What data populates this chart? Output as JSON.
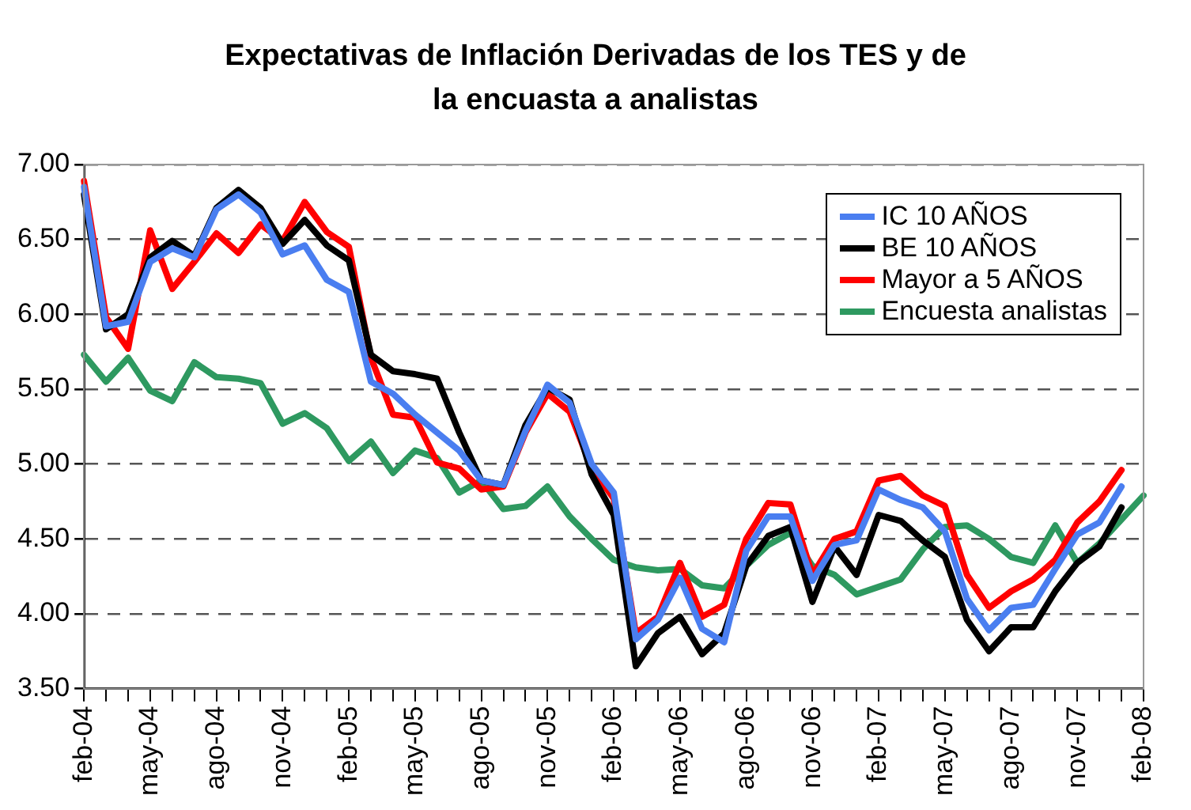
{
  "chart_data": {
    "type": "line",
    "title": "Expectativas de Inflación Derivadas de los TES y de la encuasta a analistas",
    "categories": [
      "feb-04",
      null,
      null,
      "may-04",
      null,
      null,
      "ago-04",
      null,
      null,
      "nov-04",
      null,
      null,
      "feb-05",
      null,
      null,
      "may-05",
      null,
      null,
      "ago-05",
      null,
      null,
      "nov-05",
      null,
      null,
      "feb-06",
      null,
      null,
      "may-06",
      null,
      null,
      "ago-06",
      null,
      null,
      "nov-06",
      null,
      null,
      "feb-07",
      null,
      null,
      "may-07",
      null,
      null,
      "ago-07",
      null,
      null,
      "nov-07",
      null,
      null,
      "feb-08"
    ],
    "series": [
      {
        "name": "IC 10 AÑOS",
        "color": "#4a7ef0",
        "values": [
          6.85,
          5.92,
          5.95,
          6.35,
          6.44,
          6.38,
          6.7,
          6.8,
          6.68,
          6.4,
          6.46,
          6.23,
          6.15,
          5.55,
          5.47,
          5.33,
          5.21,
          5.09,
          4.89,
          4.86,
          5.22,
          5.53,
          5.41,
          5.0,
          4.81,
          3.83,
          3.96,
          4.24,
          3.9,
          3.81,
          4.42,
          4.65,
          4.65,
          4.22,
          4.46,
          4.49,
          4.83,
          4.76,
          4.71,
          4.55,
          4.1,
          3.89,
          4.04,
          4.06,
          4.3,
          4.53,
          4.61,
          4.85,
          null
        ]
      },
      {
        "name": "BE 10 AÑOS",
        "color": "#000000",
        "values": [
          6.8,
          5.9,
          6.0,
          6.38,
          6.49,
          6.39,
          6.71,
          6.83,
          6.71,
          6.47,
          6.63,
          6.46,
          6.36,
          5.73,
          5.62,
          5.6,
          5.57,
          5.21,
          4.89,
          4.86,
          5.26,
          5.51,
          5.43,
          4.93,
          4.66,
          3.65,
          3.87,
          3.98,
          3.73,
          3.87,
          4.32,
          4.52,
          4.58,
          4.08,
          4.45,
          4.26,
          4.66,
          4.62,
          4.49,
          4.38,
          3.96,
          3.75,
          3.91,
          3.91,
          4.15,
          4.34,
          4.45,
          4.71,
          null
        ]
      },
      {
        "name": "Mayor a 5 AÑOS",
        "color": "#ff0000",
        "values": [
          6.89,
          5.98,
          5.77,
          6.56,
          6.17,
          6.35,
          6.54,
          6.41,
          6.6,
          6.49,
          6.75,
          6.55,
          6.45,
          5.71,
          5.33,
          5.31,
          5.01,
          4.97,
          4.83,
          4.85,
          5.21,
          5.47,
          5.35,
          4.97,
          4.77,
          3.87,
          3.98,
          4.34,
          3.98,
          4.06,
          4.5,
          4.74,
          4.73,
          4.26,
          4.5,
          4.55,
          4.89,
          4.92,
          4.79,
          4.72,
          4.26,
          4.04,
          4.15,
          4.23,
          4.36,
          4.61,
          4.75,
          4.96,
          null
        ]
      },
      {
        "name": "Encuesta analistas",
        "color": "#2e9960",
        "values": [
          5.73,
          5.55,
          5.71,
          5.49,
          5.42,
          5.68,
          5.58,
          5.57,
          5.54,
          5.27,
          5.34,
          5.24,
          5.02,
          5.15,
          4.94,
          5.09,
          5.04,
          4.81,
          4.89,
          4.7,
          4.72,
          4.85,
          4.65,
          4.5,
          4.36,
          4.31,
          4.29,
          4.3,
          4.19,
          4.17,
          4.32,
          4.46,
          4.54,
          4.32,
          4.26,
          4.13,
          4.18,
          4.23,
          4.43,
          4.58,
          4.59,
          4.5,
          4.38,
          4.34,
          4.59,
          4.34,
          4.47,
          4.63,
          4.79
        ]
      }
    ],
    "ylim": [
      3.5,
      7
    ],
    "yticks": [
      {
        "value": 3.5,
        "label": "3.50"
      },
      {
        "value": 4,
        "label": "4.00"
      },
      {
        "value": 4.5,
        "label": "4.50"
      },
      {
        "value": 5,
        "label": "5.00"
      },
      {
        "value": 5.5,
        "label": "5.50"
      },
      {
        "value": 6,
        "label": "6.00"
      },
      {
        "value": 6.5,
        "label": "6.50"
      },
      {
        "value": 7,
        "label": "7.00"
      }
    ],
    "grid": "y",
    "legend": "top right",
    "marker": "none",
    "line_style": "solid"
  }
}
